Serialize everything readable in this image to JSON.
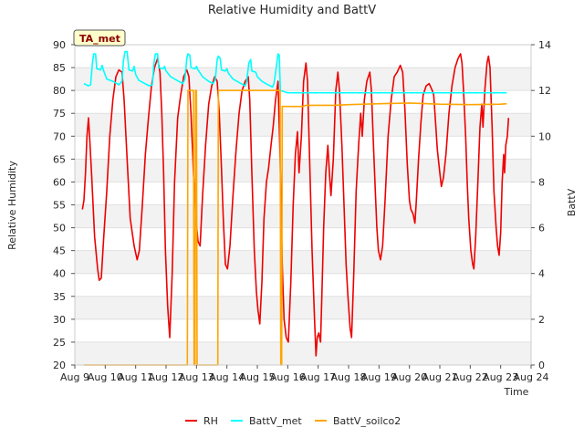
{
  "chart_data": {
    "type": "line",
    "title": "Relative Humidity and BattV",
    "site_label": "TA_met",
    "xlabel": "Time",
    "ylabel_left": "Relative Humidity",
    "ylabel_right": "BattV",
    "x_ticks": [
      "Aug 9",
      "Aug 10",
      "Aug 11",
      "Aug 12",
      "Aug 13",
      "Aug 14",
      "Aug 15",
      "Aug 16",
      "Aug 17",
      "Aug 18",
      "Aug 19",
      "Aug 20",
      "Aug 21",
      "Aug 22",
      "Aug 23",
      "Aug 24"
    ],
    "xlim": [
      9,
      24
    ],
    "ylim_left": [
      20,
      90
    ],
    "ylim_right": [
      0,
      14
    ],
    "left_ticks": [
      20,
      25,
      30,
      35,
      40,
      45,
      50,
      55,
      60,
      65,
      70,
      75,
      80,
      85,
      90
    ],
    "right_ticks": [
      0,
      2,
      4,
      6,
      8,
      10,
      12,
      14
    ],
    "grid": "horizontal bands",
    "legend_position": "bottom-center",
    "series": [
      {
        "name": "RH",
        "axis": "left",
        "color": "#ee0000",
        "points": [
          [
            9.25,
            54
          ],
          [
            9.3,
            56
          ],
          [
            9.35,
            62
          ],
          [
            9.4,
            70
          ],
          [
            9.45,
            74
          ],
          [
            9.5,
            68
          ],
          [
            9.55,
            62
          ],
          [
            9.65,
            48
          ],
          [
            9.75,
            41
          ],
          [
            9.8,
            38.5
          ],
          [
            9.87,
            39
          ],
          [
            9.95,
            48
          ],
          [
            10.05,
            58
          ],
          [
            10.15,
            70
          ],
          [
            10.25,
            78
          ],
          [
            10.35,
            83
          ],
          [
            10.45,
            84.5
          ],
          [
            10.55,
            84
          ],
          [
            10.62,
            78
          ],
          [
            10.72,
            65
          ],
          [
            10.82,
            52
          ],
          [
            10.95,
            46
          ],
          [
            11.05,
            43
          ],
          [
            11.12,
            45
          ],
          [
            11.22,
            55
          ],
          [
            11.32,
            66
          ],
          [
            11.42,
            74
          ],
          [
            11.52,
            81
          ],
          [
            11.62,
            85
          ],
          [
            11.72,
            87
          ],
          [
            11.8,
            84
          ],
          [
            11.86,
            75
          ],
          [
            11.92,
            62
          ],
          [
            11.98,
            45
          ],
          [
            12.05,
            33
          ],
          [
            12.12,
            26
          ],
          [
            12.2,
            40
          ],
          [
            12.28,
            60
          ],
          [
            12.38,
            74
          ],
          [
            12.48,
            79
          ],
          [
            12.58,
            83
          ],
          [
            12.68,
            84.5
          ],
          [
            12.75,
            83
          ],
          [
            12.82,
            75
          ],
          [
            12.9,
            62
          ],
          [
            12.98,
            52
          ],
          [
            13.05,
            47
          ],
          [
            13.12,
            46
          ],
          [
            13.2,
            57
          ],
          [
            13.3,
            68
          ],
          [
            13.4,
            77
          ],
          [
            13.5,
            81
          ],
          [
            13.6,
            83
          ],
          [
            13.68,
            82
          ],
          [
            13.75,
            75
          ],
          [
            13.82,
            63
          ],
          [
            13.88,
            52
          ],
          [
            13.95,
            42
          ],
          [
            14.02,
            41
          ],
          [
            14.1,
            46
          ],
          [
            14.2,
            57
          ],
          [
            14.3,
            67
          ],
          [
            14.4,
            75
          ],
          [
            14.5,
            80
          ],
          [
            14.6,
            82
          ],
          [
            14.7,
            83
          ],
          [
            14.75,
            78
          ],
          [
            14.82,
            62
          ],
          [
            14.9,
            45
          ],
          [
            14.97,
            36
          ],
          [
            15.02,
            32
          ],
          [
            15.08,
            29
          ],
          [
            15.15,
            38
          ],
          [
            15.22,
            52
          ],
          [
            15.3,
            60
          ],
          [
            15.37,
            63
          ],
          [
            15.45,
            68
          ],
          [
            15.52,
            72
          ],
          [
            15.6,
            78
          ],
          [
            15.68,
            82
          ],
          [
            15.75,
            65
          ],
          [
            15.82,
            42
          ],
          [
            15.88,
            30
          ],
          [
            15.95,
            26
          ],
          [
            16.02,
            25
          ],
          [
            16.1,
            38
          ],
          [
            16.18,
            55
          ],
          [
            16.25,
            66
          ],
          [
            16.32,
            71
          ],
          [
            16.37,
            62
          ],
          [
            16.45,
            70
          ],
          [
            16.52,
            82
          ],
          [
            16.6,
            86
          ],
          [
            16.65,
            82
          ],
          [
            16.72,
            65
          ],
          [
            16.8,
            45
          ],
          [
            16.88,
            30
          ],
          [
            16.93,
            22
          ],
          [
            16.97,
            26
          ],
          [
            17.02,
            27
          ],
          [
            17.08,
            25
          ],
          [
            17.12,
            35
          ],
          [
            17.18,
            50
          ],
          [
            17.25,
            62
          ],
          [
            17.32,
            68
          ],
          [
            17.37,
            62
          ],
          [
            17.42,
            57
          ],
          [
            17.5,
            65
          ],
          [
            17.58,
            80
          ],
          [
            17.65,
            84
          ],
          [
            17.7,
            80
          ],
          [
            17.78,
            68
          ],
          [
            17.85,
            55
          ],
          [
            17.92,
            42
          ],
          [
            17.98,
            35
          ],
          [
            18.05,
            28
          ],
          [
            18.1,
            26
          ],
          [
            18.17,
            40
          ],
          [
            18.25,
            58
          ],
          [
            18.33,
            68
          ],
          [
            18.4,
            75
          ],
          [
            18.45,
            70
          ],
          [
            18.52,
            78
          ],
          [
            18.6,
            82
          ],
          [
            18.7,
            84
          ],
          [
            18.75,
            80
          ],
          [
            18.82,
            68
          ],
          [
            18.88,
            58
          ],
          [
            18.93,
            50
          ],
          [
            18.98,
            45
          ],
          [
            19.05,
            43
          ],
          [
            19.12,
            46
          ],
          [
            19.2,
            56
          ],
          [
            19.3,
            70
          ],
          [
            19.4,
            78
          ],
          [
            19.5,
            83
          ],
          [
            19.6,
            84
          ],
          [
            19.7,
            85.5
          ],
          [
            19.78,
            84
          ],
          [
            19.85,
            76
          ],
          [
            19.93,
            64
          ],
          [
            20.0,
            56
          ],
          [
            20.05,
            54
          ],
          [
            20.12,
            53
          ],
          [
            20.18,
            51
          ],
          [
            20.22,
            55
          ],
          [
            20.3,
            65
          ],
          [
            20.38,
            73
          ],
          [
            20.45,
            79
          ],
          [
            20.55,
            81
          ],
          [
            20.65,
            81.5
          ],
          [
            20.75,
            80
          ],
          [
            20.8,
            79
          ],
          [
            20.85,
            74
          ],
          [
            20.92,
            67
          ],
          [
            21.0,
            62
          ],
          [
            21.05,
            59
          ],
          [
            21.12,
            61
          ],
          [
            21.2,
            66
          ],
          [
            21.3,
            75
          ],
          [
            21.4,
            81
          ],
          [
            21.5,
            85
          ],
          [
            21.6,
            87
          ],
          [
            21.68,
            88
          ],
          [
            21.73,
            86
          ],
          [
            21.78,
            80
          ],
          [
            21.85,
            70
          ],
          [
            21.9,
            60
          ],
          [
            21.95,
            52
          ],
          [
            22.02,
            45
          ],
          [
            22.08,
            42
          ],
          [
            22.12,
            41
          ],
          [
            22.18,
            48
          ],
          [
            22.25,
            60
          ],
          [
            22.32,
            72
          ],
          [
            22.38,
            77
          ],
          [
            22.42,
            72
          ],
          [
            22.48,
            80
          ],
          [
            22.55,
            86
          ],
          [
            22.6,
            87.5
          ],
          [
            22.65,
            85
          ],
          [
            22.72,
            72
          ],
          [
            22.78,
            58
          ],
          [
            22.85,
            50
          ],
          [
            22.9,
            46
          ],
          [
            22.95,
            44
          ],
          [
            23.0,
            49
          ],
          [
            23.05,
            60
          ],
          [
            23.1,
            66
          ],
          [
            23.13,
            62
          ],
          [
            23.17,
            68
          ],
          [
            23.22,
            70
          ],
          [
            23.26,
            74
          ]
        ]
      },
      {
        "name": "BattV_met",
        "axis": "right",
        "color": "#00ffff",
        "points": [
          [
            9.3,
            12.3
          ],
          [
            9.45,
            12.2
          ],
          [
            9.52,
            12.25
          ],
          [
            9.58,
            13.2
          ],
          [
            9.62,
            13.6
          ],
          [
            9.68,
            13.6
          ],
          [
            9.72,
            12.95
          ],
          [
            9.85,
            12.9
          ],
          [
            9.9,
            13.1
          ],
          [
            9.95,
            12.85
          ],
          [
            10.05,
            12.5
          ],
          [
            10.25,
            12.4
          ],
          [
            10.45,
            12.25
          ],
          [
            10.55,
            12.4
          ],
          [
            10.6,
            13.3
          ],
          [
            10.65,
            13.7
          ],
          [
            10.72,
            13.7
          ],
          [
            10.78,
            12.9
          ],
          [
            10.9,
            12.85
          ],
          [
            10.95,
            13.05
          ],
          [
            11.0,
            12.7
          ],
          [
            11.1,
            12.45
          ],
          [
            11.3,
            12.3
          ],
          [
            11.45,
            12.2
          ],
          [
            11.55,
            12.25
          ],
          [
            11.6,
            13.2
          ],
          [
            11.65,
            13.6
          ],
          [
            11.72,
            13.6
          ],
          [
            11.76,
            13.0
          ],
          [
            11.9,
            12.95
          ],
          [
            11.95,
            13.05
          ],
          [
            12.0,
            12.85
          ],
          [
            12.15,
            12.6
          ],
          [
            12.35,
            12.45
          ],
          [
            12.55,
            12.3
          ],
          [
            12.62,
            12.5
          ],
          [
            12.68,
            13.4
          ],
          [
            12.72,
            13.6
          ],
          [
            12.78,
            13.55
          ],
          [
            12.82,
            13.0
          ],
          [
            12.95,
            12.95
          ],
          [
            13.0,
            13.05
          ],
          [
            13.05,
            12.9
          ],
          [
            13.2,
            12.6
          ],
          [
            13.4,
            12.4
          ],
          [
            13.55,
            12.3
          ],
          [
            13.62,
            12.5
          ],
          [
            13.68,
            13.35
          ],
          [
            13.72,
            13.5
          ],
          [
            13.78,
            13.4
          ],
          [
            13.82,
            12.9
          ],
          [
            13.95,
            12.85
          ],
          [
            14.0,
            12.95
          ],
          [
            14.05,
            12.75
          ],
          [
            14.2,
            12.5
          ],
          [
            14.4,
            12.35
          ],
          [
            14.6,
            12.2
          ],
          [
            14.65,
            12.4
          ],
          [
            14.72,
            13.2
          ],
          [
            14.78,
            13.35
          ],
          [
            14.82,
            12.85
          ],
          [
            14.95,
            12.8
          ],
          [
            15.0,
            12.6
          ],
          [
            15.15,
            12.4
          ],
          [
            15.35,
            12.25
          ],
          [
            15.5,
            12.15
          ],
          [
            15.55,
            12.3
          ],
          [
            15.62,
            13.0
          ],
          [
            15.68,
            13.6
          ],
          [
            15.72,
            13.55
          ],
          [
            15.76,
            12.0
          ],
          [
            16.0,
            11.9
          ],
          [
            17.0,
            11.9
          ],
          [
            18.0,
            11.9
          ],
          [
            19.0,
            11.9
          ],
          [
            20.0,
            11.9
          ],
          [
            21.0,
            11.9
          ],
          [
            22.0,
            11.9
          ],
          [
            23.2,
            11.9
          ]
        ]
      },
      {
        "name": "BattV_soilco2",
        "axis": "right",
        "color": "#ffa500",
        "points": [
          [
            9.3,
            0
          ],
          [
            12.7,
            0
          ],
          [
            12.72,
            12
          ],
          [
            12.9,
            12
          ],
          [
            12.92,
            0
          ],
          [
            12.95,
            0
          ],
          [
            12.97,
            12
          ],
          [
            13.0,
            12
          ],
          [
            13.02,
            0
          ],
          [
            13.7,
            0
          ],
          [
            13.72,
            12
          ],
          [
            14.0,
            12
          ],
          [
            15.0,
            12
          ],
          [
            15.75,
            12
          ],
          [
            15.77,
            0
          ],
          [
            15.8,
            0
          ],
          [
            15.82,
            11.3
          ],
          [
            16.5,
            11.3
          ],
          [
            16.6,
            11.35
          ],
          [
            17.5,
            11.35
          ],
          [
            18.0,
            11.38
          ],
          [
            18.5,
            11.4
          ],
          [
            19.0,
            11.42
          ],
          [
            20.0,
            11.45
          ],
          [
            21.0,
            11.4
          ],
          [
            22.0,
            11.38
          ],
          [
            23.0,
            11.4
          ],
          [
            23.2,
            11.42
          ]
        ]
      }
    ]
  }
}
